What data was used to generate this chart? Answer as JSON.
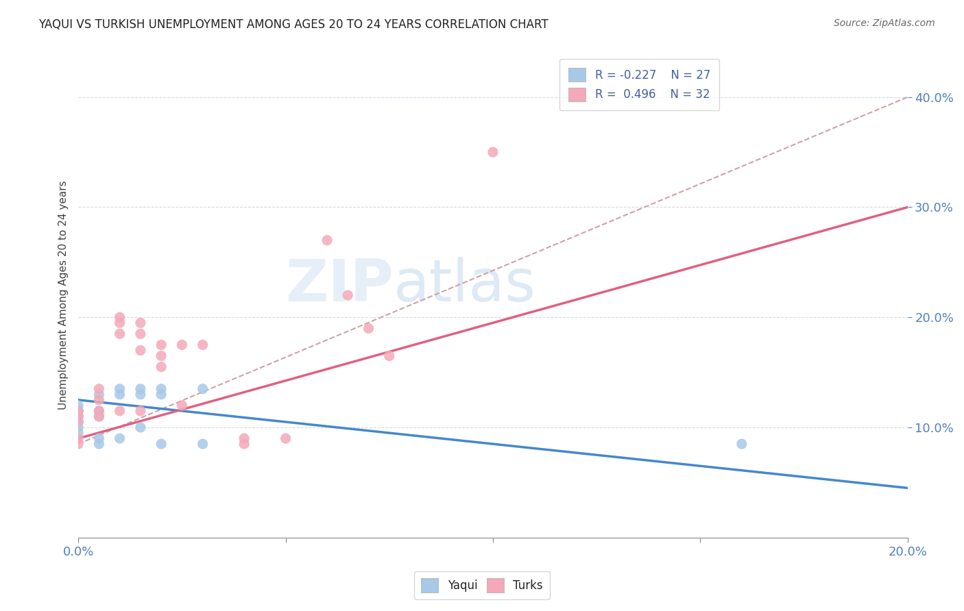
{
  "title": "YAQUI VS TURKISH UNEMPLOYMENT AMONG AGES 20 TO 24 YEARS CORRELATION CHART",
  "source": "Source: ZipAtlas.com",
  "ylabel_label": "Unemployment Among Ages 20 to 24 years",
  "xmin": 0.0,
  "xmax": 0.2,
  "ymin": 0.0,
  "ymax": 0.44,
  "xtick_labels": [
    "0.0%",
    "",
    "",
    "",
    "20.0%"
  ],
  "xtick_vals": [
    0.0,
    0.05,
    0.1,
    0.15,
    0.2
  ],
  "ytick_labels": [
    "10.0%",
    "20.0%",
    "30.0%",
    "40.0%"
  ],
  "ytick_vals": [
    0.1,
    0.2,
    0.3,
    0.4
  ],
  "legend_R_yaqui": "-0.227",
  "legend_N_yaqui": "27",
  "legend_R_turks": "0.496",
  "legend_N_turks": "32",
  "yaqui_color": "#a8c8e8",
  "turks_color": "#f4a8b8",
  "yaqui_line_color": "#4488cc",
  "turks_line_color": "#e06080",
  "gray_trend_color": "#d0a0a8",
  "background_color": "#ffffff",
  "yaqui_scatter_x": [
    0.0,
    0.0,
    0.0,
    0.0,
    0.0,
    0.0,
    0.0,
    0.005,
    0.005,
    0.005,
    0.005,
    0.005,
    0.01,
    0.01,
    0.01,
    0.015,
    0.015,
    0.015,
    0.02,
    0.02,
    0.02,
    0.03,
    0.03,
    0.16
  ],
  "yaqui_scatter_y": [
    0.12,
    0.115,
    0.115,
    0.11,
    0.105,
    0.1,
    0.095,
    0.13,
    0.115,
    0.11,
    0.09,
    0.085,
    0.135,
    0.13,
    0.09,
    0.135,
    0.13,
    0.1,
    0.135,
    0.13,
    0.085,
    0.135,
    0.085,
    0.085
  ],
  "turks_scatter_x": [
    0.0,
    0.0,
    0.0,
    0.0,
    0.0,
    0.005,
    0.005,
    0.005,
    0.005,
    0.01,
    0.01,
    0.01,
    0.01,
    0.015,
    0.015,
    0.015,
    0.015,
    0.02,
    0.02,
    0.02,
    0.025,
    0.025,
    0.03,
    0.04,
    0.04,
    0.05,
    0.06,
    0.065,
    0.07,
    0.075,
    0.1
  ],
  "turks_scatter_y": [
    0.115,
    0.11,
    0.105,
    0.09,
    0.085,
    0.135,
    0.125,
    0.115,
    0.11,
    0.2,
    0.195,
    0.185,
    0.115,
    0.195,
    0.185,
    0.17,
    0.115,
    0.175,
    0.165,
    0.155,
    0.175,
    0.12,
    0.175,
    0.09,
    0.085,
    0.09,
    0.27,
    0.22,
    0.19,
    0.165,
    0.35
  ],
  "yaqui_trend_x": [
    0.0,
    0.2
  ],
  "yaqui_trend_y": [
    0.125,
    0.045
  ],
  "turks_trend_x": [
    0.0,
    0.2
  ],
  "turks_trend_y": [
    0.09,
    0.3
  ],
  "gray_trend_x": [
    0.0,
    0.2
  ],
  "gray_trend_y": [
    0.085,
    0.4
  ]
}
